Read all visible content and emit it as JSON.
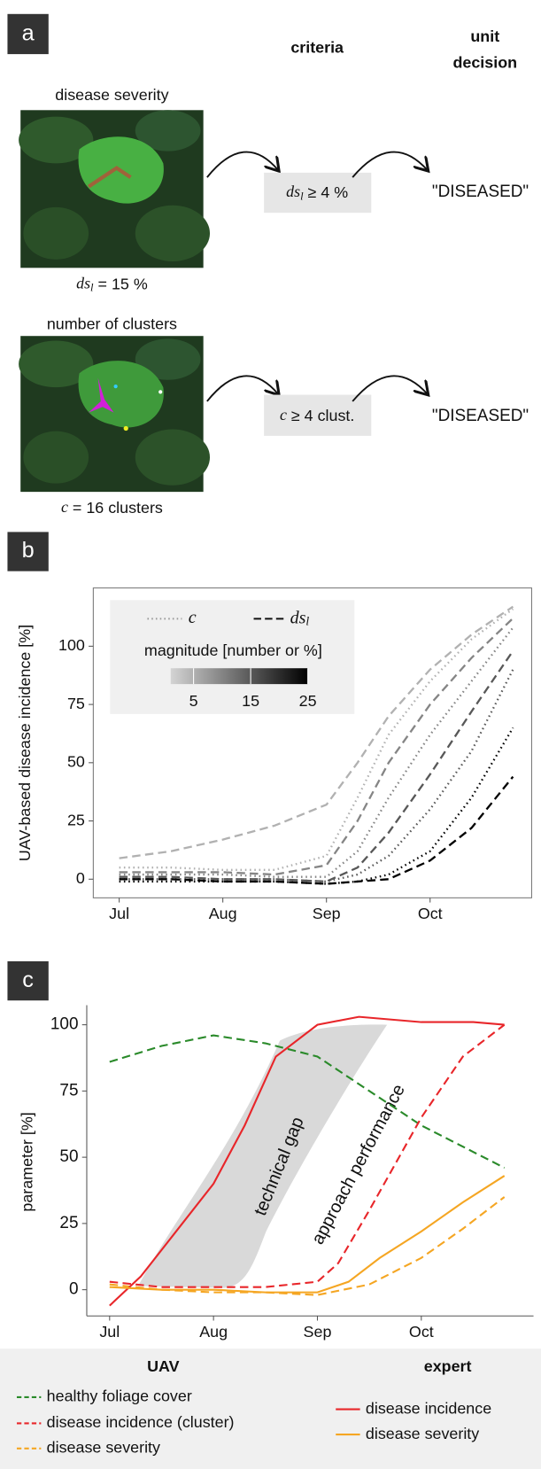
{
  "panel_labels": [
    "a",
    "b",
    "c"
  ],
  "diagram": {
    "header": {
      "criteria": "criteria",
      "decision_line1": "unit",
      "decision_line2": "decision"
    },
    "rows": [
      {
        "title": "disease severity",
        "caption_symbol": "ds",
        "caption_sub": "l",
        "caption_rest": " = 15 %",
        "criterion_symbol": "ds",
        "criterion_sub": "l",
        "criterion_rest": " ≥ 4 %",
        "decision": "\"DISEASED\""
      },
      {
        "title": "number of clusters",
        "caption_symbol": "c",
        "caption_rest": " = 16 clusters",
        "criterion_symbol": "c",
        "criterion_rest": " ≥ 4 clust.",
        "decision": "\"DISEASED\""
      }
    ]
  },
  "chart_data": [
    {
      "type": "line",
      "ylabel": "UAV-based disease incidence [%]",
      "x": [
        0,
        0.5,
        1,
        1.5,
        2,
        2.3,
        2.6,
        3,
        3.4,
        3.8
      ],
      "xlim": [
        -0.25,
        3.98
      ],
      "xticks": [
        {
          "value": 0,
          "label": "Jul"
        },
        {
          "value": 1,
          "label": "Aug"
        },
        {
          "value": 2,
          "label": "Sep"
        },
        {
          "value": 3,
          "label": "Oct"
        }
      ],
      "ylim": [
        -8,
        125
      ],
      "yticks": [
        0,
        25,
        50,
        75,
        100
      ],
      "legend": {
        "items": [
          {
            "symbol": "c",
            "style": "dotted"
          },
          {
            "symbol": "ds",
            "sub": "l",
            "style": "dashed"
          }
        ],
        "colorbar_title": "magnitude [number or %]"
      },
      "colorbar": {
        "lim": [
          1,
          25
        ],
        "ticks": [
          5,
          15,
          25
        ],
        "colors": [
          "#d4d4d4",
          "#000000"
        ]
      },
      "series": [
        {
          "style": "dashed",
          "magnitude": 5,
          "values": [
            9,
            12,
            17,
            23,
            32,
            50,
            70,
            90,
            105,
            117
          ]
        },
        {
          "style": "dotted",
          "magnitude": 5,
          "values": [
            5,
            5,
            4,
            4,
            10,
            35,
            62,
            85,
            103,
            116
          ]
        },
        {
          "style": "dashed",
          "magnitude": 10,
          "values": [
            3,
            3,
            3,
            2,
            6,
            25,
            50,
            75,
            95,
            112
          ]
        },
        {
          "style": "dotted",
          "magnitude": 10,
          "values": [
            2,
            2,
            2,
            1,
            1,
            12,
            35,
            62,
            85,
            108
          ]
        },
        {
          "style": "dashed",
          "magnitude": 15,
          "values": [
            1,
            1,
            0,
            0,
            -1,
            5,
            20,
            45,
            72,
            98
          ]
        },
        {
          "style": "dotted",
          "magnitude": 15,
          "values": [
            0,
            0,
            0,
            0,
            -1,
            2,
            10,
            30,
            55,
            90
          ]
        },
        {
          "style": "dotted",
          "magnitude": 25,
          "values": [
            -1,
            -1,
            -1,
            -1,
            -2,
            -1,
            2,
            12,
            35,
            65
          ]
        },
        {
          "style": "dashed",
          "magnitude": 25,
          "values": [
            0,
            0,
            -1,
            -1,
            -2,
            -1,
            0,
            8,
            22,
            44
          ]
        }
      ]
    },
    {
      "type": "line",
      "ylabel": "parameter [%]",
      "xlim": [
        -0.22,
        4.08
      ],
      "xticks": [
        {
          "value": 0,
          "label": "Jul"
        },
        {
          "value": 1,
          "label": "Aug"
        },
        {
          "value": 2,
          "label": "Sep"
        },
        {
          "value": 3,
          "label": "Oct"
        }
      ],
      "ylim": [
        -9.9,
        107.4
      ],
      "yticks": [
        0,
        25,
        50,
        75,
        100
      ],
      "annotations": [
        "technical gap",
        "approach performance"
      ],
      "series_groups": [
        {
          "name": "UAV",
          "series": [
            {
              "name": "healthy foliage cover",
              "color": "#2a8a2a",
              "style": "dashed",
              "x": [
                0,
                0.5,
                1,
                1.5,
                2,
                2.5,
                3,
                3.5,
                3.8
              ],
              "values": [
                86,
                92,
                96,
                93,
                88,
                75,
                62,
                52,
                46
              ]
            },
            {
              "name": "disease incidence (cluster)",
              "color": "#e8262a",
              "style": "dashed",
              "x": [
                0,
                0.5,
                1,
                1.5,
                2,
                2.2,
                2.5,
                3,
                3.4,
                3.8
              ],
              "values": [
                3,
                1,
                1,
                1,
                3,
                10,
                30,
                65,
                88,
                100
              ]
            },
            {
              "name": "disease severity",
              "color": "#f5a623",
              "style": "dashed",
              "x": [
                0,
                0.5,
                1,
                1.5,
                2,
                2.5,
                3,
                3.4,
                3.8
              ],
              "values": [
                2,
                0,
                -1,
                -1,
                -2,
                2,
                12,
                23,
                35
              ]
            }
          ]
        },
        {
          "name": "expert",
          "series": [
            {
              "name": "disease incidence",
              "color": "#e8262a",
              "style": "solid",
              "x": [
                0,
                0.3,
                0.6,
                1,
                1.3,
                1.6,
                2,
                2.4,
                3,
                3.5,
                3.8
              ],
              "values": [
                -6,
                5,
                20,
                40,
                62,
                88,
                100,
                103,
                101,
                101,
                100
              ]
            },
            {
              "name": "disease severity",
              "color": "#f5a623",
              "style": "solid",
              "x": [
                0,
                0.5,
                1,
                1.5,
                2,
                2.3,
                2.6,
                3,
                3.4,
                3.8
              ],
              "values": [
                1,
                0,
                0,
                -1,
                -1,
                3,
                12,
                22,
                33,
                43
              ]
            }
          ]
        }
      ]
    }
  ]
}
